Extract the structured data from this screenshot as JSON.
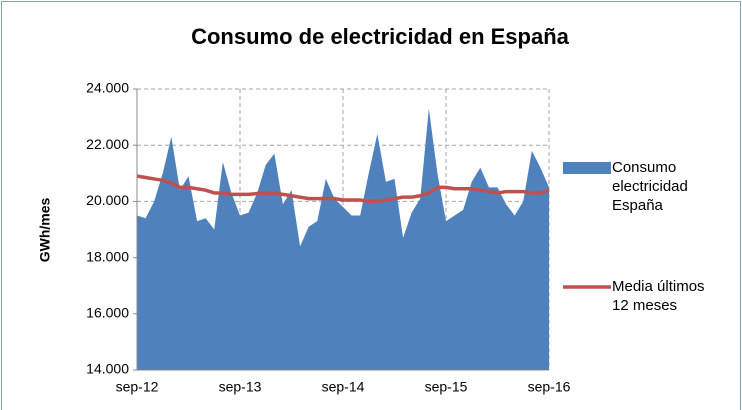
{
  "chart_data": {
    "type": "area-line",
    "title": "Consumo de electricidad en España",
    "y_label": "GWh/mes",
    "categories": [
      "sep-12",
      null,
      null,
      null,
      null,
      null,
      null,
      null,
      null,
      null,
      null,
      null,
      "sep-13",
      null,
      null,
      null,
      null,
      null,
      null,
      null,
      null,
      null,
      null,
      null,
      "sep-14",
      null,
      null,
      null,
      null,
      null,
      null,
      null,
      null,
      null,
      null,
      null,
      "sep-15",
      null,
      null,
      null,
      null,
      null,
      null,
      null,
      null,
      null,
      null,
      null,
      "sep-16"
    ],
    "series": [
      {
        "name": "Consumo electricidad España",
        "color": "#4f81bd",
        "kind": "area",
        "values": [
          19500,
          19400,
          20000,
          21000,
          22300,
          20400,
          20900,
          19300,
          19400,
          19000,
          21400,
          20300,
          19500,
          19600,
          20300,
          21300,
          21700,
          19900,
          20400,
          18400,
          19100,
          19300,
          20800,
          20100,
          19800,
          19500,
          19500,
          21000,
          22400,
          20700,
          20800,
          18700,
          19600,
          20100,
          23300,
          21000,
          19300,
          19500,
          19700,
          20700,
          21200,
          20500,
          20500,
          19900,
          19500,
          20000,
          21800,
          21200,
          20500
        ]
      },
      {
        "name": "Media últimos 12 meses",
        "color": "#c0504d",
        "kind": "line",
        "values": [
          20900,
          20850,
          20800,
          20750,
          20650,
          20500,
          20500,
          20450,
          20400,
          20300,
          20300,
          20250,
          20250,
          20250,
          20280,
          20300,
          20280,
          20250,
          20200,
          20150,
          20100,
          20100,
          20100,
          20100,
          20050,
          20050,
          20050,
          20000,
          20000,
          20050,
          20100,
          20150,
          20150,
          20200,
          20300,
          20500,
          20500,
          20450,
          20450,
          20450,
          20400,
          20350,
          20300,
          20350,
          20350,
          20350,
          20300,
          20300,
          20400
        ]
      }
    ],
    "ylim": [
      14000,
      24000
    ],
    "yticks": [
      {
        "value": 14000,
        "label": "14.000"
      },
      {
        "value": 16000,
        "label": "16.000"
      },
      {
        "value": 18000,
        "label": "18.000"
      },
      {
        "value": 20000,
        "label": "20.000"
      },
      {
        "value": 22000,
        "label": "22.000"
      },
      {
        "value": 24000,
        "label": "24.000"
      }
    ],
    "grid": true
  }
}
